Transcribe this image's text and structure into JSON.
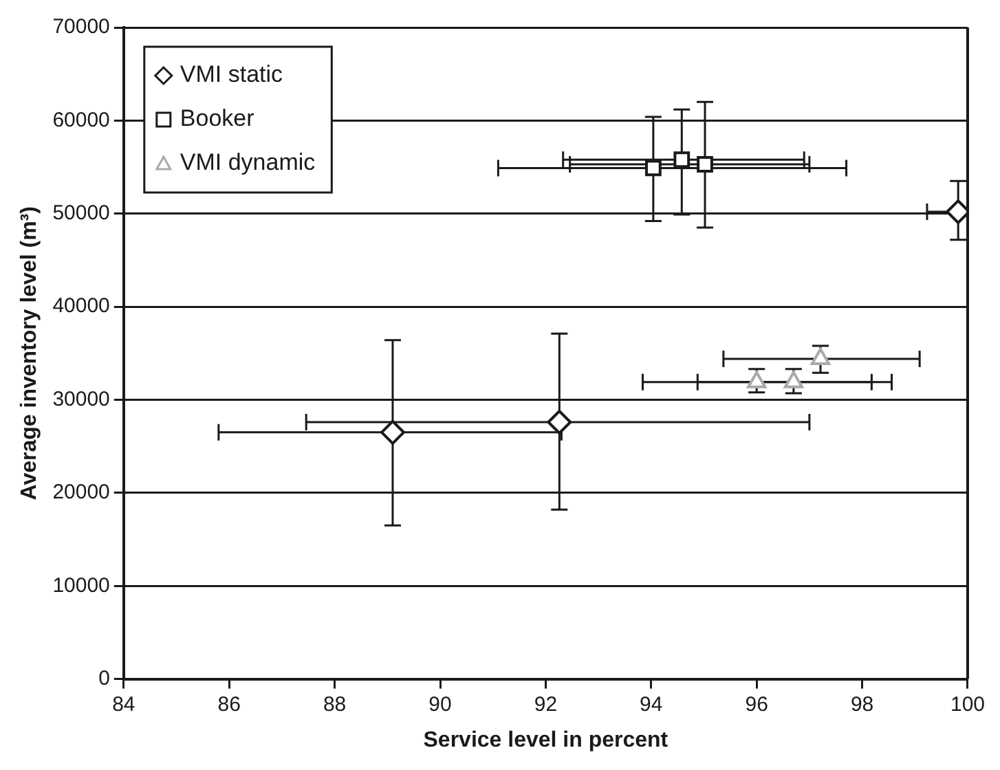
{
  "chart_data": {
    "type": "scatter",
    "xlabel": "Service level in percent",
    "ylabel": "Average inventory level (m³)",
    "xlim": [
      84,
      100
    ],
    "xticks": [
      84,
      86,
      88,
      90,
      92,
      94,
      96,
      98,
      100
    ],
    "ylim": [
      0,
      70000
    ],
    "yticks": [
      0,
      10000,
      20000,
      30000,
      40000,
      50000,
      60000,
      70000
    ],
    "grid": "y",
    "legend": "top left",
    "series": [
      {
        "name": "VMI static",
        "color": "#1a1a1a",
        "marker": "diamond",
        "x": [
          89.1,
          92.26,
          99.82
        ],
        "values": [
          26500,
          27600,
          50200
        ],
        "errors": [
          [
            16500,
            36400
          ],
          [
            18200,
            37100
          ],
          [
            47200,
            53500
          ]
        ],
        "xerrors": [
          [
            85.8,
            92.3
          ],
          [
            87.46,
            97.0
          ],
          [
            99.23,
            100
          ]
        ]
      },
      {
        "name": "Booker",
        "color": "#1a1a1a",
        "marker": "square",
        "x": [
          94.04,
          94.58,
          95.02
        ],
        "values": [
          54900,
          55800,
          55300
        ],
        "errors": [
          [
            49200,
            60400
          ],
          [
            49900,
            61200
          ],
          [
            48500,
            62000
          ]
        ],
        "xerrors": [
          [
            91.1,
            97.7
          ],
          [
            92.33,
            96.9
          ],
          [
            92.46,
            97.0
          ]
        ]
      },
      {
        "name": "VMI dynamic",
        "color": "#aaaaaa",
        "marker": "triangle",
        "x": [
          96.0,
          96.7,
          97.21
        ],
        "values": [
          31900,
          31900,
          34400
        ],
        "errors": [
          [
            30800,
            33300
          ],
          [
            30700,
            33300
          ],
          [
            32900,
            35800
          ]
        ],
        "xerrors": [
          [
            93.84,
            98.18
          ],
          [
            94.88,
            98.56
          ],
          [
            95.37,
            99.09
          ]
        ]
      }
    ]
  }
}
